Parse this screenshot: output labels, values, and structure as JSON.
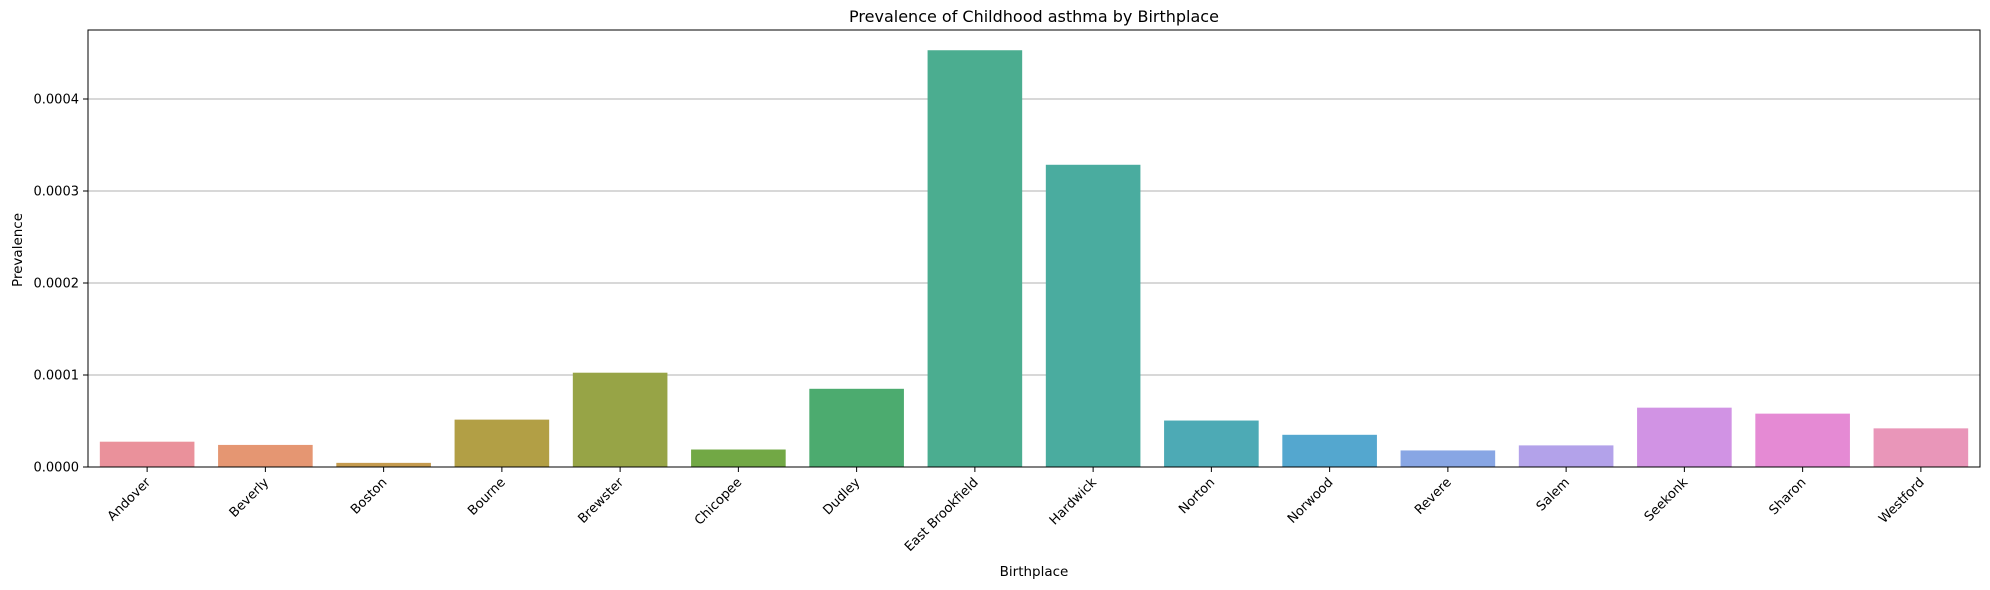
{
  "chart_data": {
    "type": "bar",
    "title": "Prevalence of Childhood asthma by Birthplace",
    "xlabel": "Birthplace",
    "ylabel": "Prevalence",
    "ylim": [
      0,
      0.000475
    ],
    "yticks": [
      "0.0000",
      "0.0001",
      "0.0002",
      "0.0003",
      "0.0004"
    ],
    "ytick_values": [
      0,
      0.0001,
      0.0002,
      0.0003,
      0.0004
    ],
    "grid": "horizontal",
    "categories": [
      "Andover",
      "Beverly",
      "Boston",
      "Bourne",
      "Brewster",
      "Chicopee",
      "Dudley",
      "East Brookfield",
      "Hardwick",
      "Norton",
      "Norwood",
      "Revere",
      "Salem",
      "Seekonk",
      "Sharon",
      "Westford"
    ],
    "values": [
      2.75e-05,
      2.4e-05,
      4.5e-06,
      5.15e-05,
      0.0001025,
      1.9e-05,
      8.5e-05,
      0.000453,
      0.0003285,
      5.05e-05,
      3.5e-05,
      1.8e-05,
      2.35e-05,
      6.45e-05,
      5.8e-05,
      4.2e-05
    ],
    "colors": [
      "#ea919b",
      "#e59672",
      "#c59b4e",
      "#b29f45",
      "#97a446",
      "#72a845",
      "#4cab6f",
      "#4bad90",
      "#4aac9f",
      "#4daab5",
      "#54a7cf",
      "#88a6e4",
      "#b3a2ea",
      "#d193e4",
      "#e58ad4",
      "#e996b9"
    ]
  }
}
